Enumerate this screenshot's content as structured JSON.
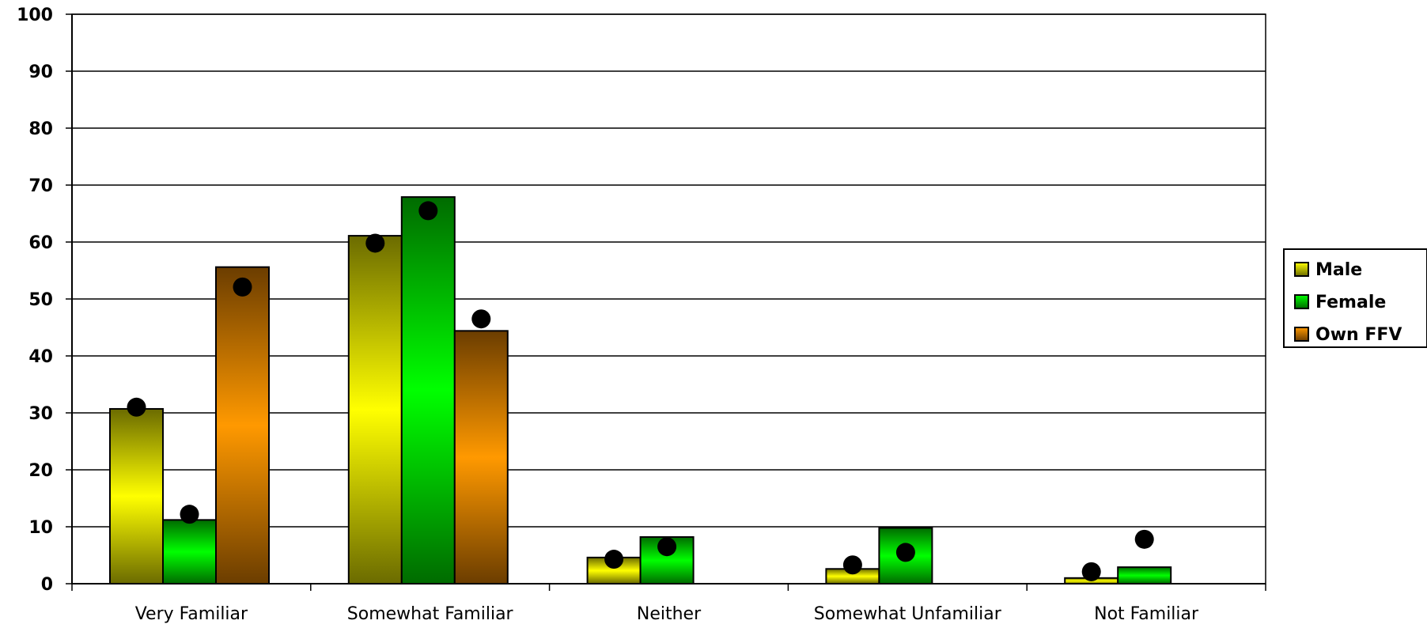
{
  "chart_data": {
    "type": "bar",
    "title": "",
    "xlabel": "",
    "ylabel": "",
    "ylim": [
      0,
      100
    ],
    "yticks": [
      0,
      10,
      20,
      30,
      40,
      50,
      60,
      70,
      80,
      90,
      100
    ],
    "grid": true,
    "legend_position": "right",
    "categories": [
      "Very Familiar",
      "Somewhat Familiar",
      "Neither",
      "Somewhat Unfamiliar",
      "Not Familiar"
    ],
    "series": [
      {
        "name": "Male",
        "color": "#ffff00",
        "shade": "#6b6b00",
        "values": [
          30.7,
          61.1,
          4.6,
          2.6,
          1.0
        ],
        "markers": [
          31.0,
          59.8,
          4.3,
          3.3,
          2.1
        ]
      },
      {
        "name": "Female",
        "color": "#00ff00",
        "shade": "#006b00",
        "values": [
          11.2,
          67.9,
          8.2,
          9.8,
          2.9
        ],
        "markers": [
          12.2,
          65.5,
          6.5,
          5.5,
          7.8
        ]
      },
      {
        "name": "Own FFV",
        "color": "#ff9900",
        "shade": "#6b3d00",
        "values": [
          55.6,
          44.4,
          null,
          null,
          null
        ],
        "markers": [
          52.1,
          46.5,
          null,
          null,
          null
        ]
      }
    ],
    "marker_color": "#000000"
  }
}
